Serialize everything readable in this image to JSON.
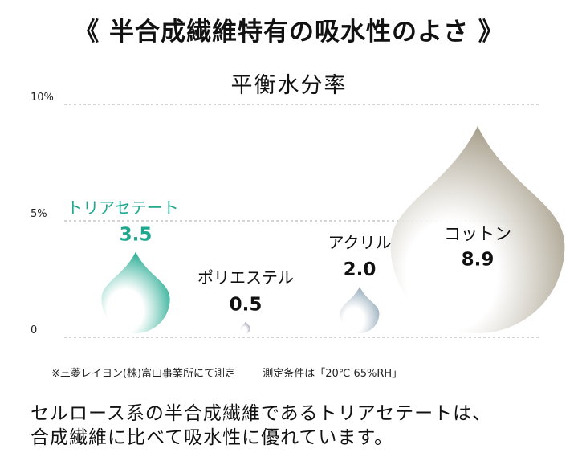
{
  "title": "《 半合成繊維特有の吸水性のよさ 》",
  "chart_data": {
    "type": "bar",
    "title": "平衡水分率",
    "categories": [
      "トリアセテート",
      "ポリエステル",
      "アクリル",
      "コットン"
    ],
    "values": [
      3.5,
      0.5,
      2.0,
      8.9
    ],
    "value_labels": [
      "3.5",
      "0.5",
      "2.0",
      "8.9"
    ],
    "y_ticks": [
      {
        "value": 0,
        "label": "0"
      },
      {
        "value": 5,
        "label": "5%"
      },
      {
        "value": 10,
        "label": "10%"
      }
    ],
    "ylim": [
      0,
      10
    ],
    "grid": true,
    "colors": [
      "#1fa88e",
      "#8e8aa2",
      "#8fa6b6",
      "#a39a86"
    ],
    "label_colors": [
      "#1fa88e",
      "#111111",
      "#111111",
      "#111111"
    ]
  },
  "notes": {
    "source": "※三菱レイヨン(株)富山事業所にて測定",
    "conditions": "測定条件は「20℃ 65%RH」"
  },
  "footer": {
    "line1": "セルロース系の半合成繊維であるトリアセテートは、",
    "line2": "合成繊維に比べて吸水性に優れています。"
  }
}
